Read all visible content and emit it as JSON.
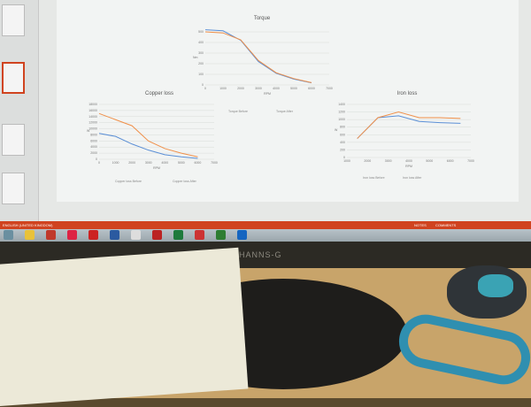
{
  "statusbar": {
    "language": "ENGLISH (UNITED KINGDOM)",
    "notes": "NOTES",
    "comments": "COMMENTS"
  },
  "monitor_brand": "HANNS-G",
  "colors": {
    "before": "#5b8fd6",
    "after": "#f0904a",
    "statusbar": "#d0431f"
  },
  "taskbar_icons": [
    "start-icon",
    "chrome-icon",
    "vivaldi-icon",
    "acrobat-icon",
    "app-icon",
    "app-icon",
    "app-icon",
    "excel-icon",
    "powerpoint-icon",
    "app-icon",
    "outlook-icon",
    "word-icon"
  ],
  "chart_data": [
    {
      "type": "line",
      "title": "Torque",
      "xlabel": "RPM",
      "ylabel": "Nm",
      "xlim": [
        0,
        7000
      ],
      "ylim": [
        0,
        500
      ],
      "x": [
        0,
        1000,
        2000,
        3000,
        4000,
        5000,
        6000
      ],
      "series": [
        {
          "name": "Torque Before",
          "values": [
            520,
            510,
            420,
            220,
            110,
            55,
            20
          ]
        },
        {
          "name": "Torque After",
          "values": [
            500,
            490,
            425,
            230,
            115,
            60,
            22
          ]
        }
      ]
    },
    {
      "type": "line",
      "title": "Copper loss",
      "xlabel": "RPM",
      "ylabel": "W",
      "xlim": [
        0,
        7000
      ],
      "ylim": [
        0,
        18000
      ],
      "x": [
        0,
        1000,
        2000,
        3000,
        4000,
        5000,
        6000
      ],
      "series": [
        {
          "name": "Copper loss Before",
          "values": [
            8500,
            7500,
            5000,
            3000,
            1500,
            800,
            300
          ]
        },
        {
          "name": "Copper loss After",
          "values": [
            15000,
            13000,
            11000,
            6000,
            3500,
            2000,
            800
          ]
        }
      ]
    },
    {
      "type": "line",
      "title": "Iron loss",
      "xlabel": "RPM",
      "ylabel": "W",
      "xlim": [
        1000,
        7000
      ],
      "ylim": [
        0,
        1400
      ],
      "x": [
        1500,
        2500,
        3500,
        4500,
        5500,
        6500
      ],
      "series": [
        {
          "name": "Iron loss Before",
          "values": [
            500,
            1050,
            1100,
            950,
            920,
            900
          ]
        },
        {
          "name": "Iron loss After",
          "values": [
            500,
            1050,
            1200,
            1050,
            1050,
            1030
          ]
        }
      ]
    }
  ]
}
